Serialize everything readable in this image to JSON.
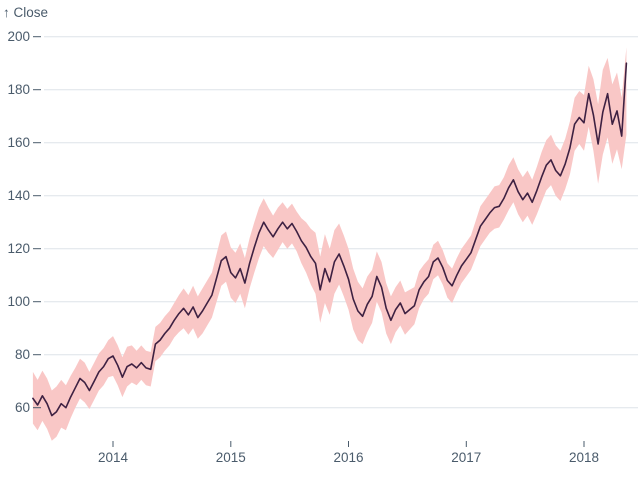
{
  "colors": {
    "band": "#f9c7c6",
    "line": "#3e2142",
    "grid": "#dee3e9",
    "axis_text": "#4a5b6b",
    "background": "#ffffff"
  },
  "chart_data": {
    "type": "line",
    "title": "↑ Close",
    "xlabel": "",
    "ylabel": "Close",
    "grid": true,
    "legend_position": "none",
    "x_ticks": [
      2014,
      2015,
      2016,
      2017,
      2018
    ],
    "y_ticks": [
      60,
      80,
      100,
      120,
      140,
      160,
      180,
      200
    ],
    "x_range": [
      2013.32,
      2018.37
    ],
    "y_range": [
      60,
      200
    ],
    "series_format": [
      "year_decimal",
      "close",
      "band_low",
      "band_high"
    ],
    "series": [
      {
        "name": "close",
        "style": "dark line"
      },
      {
        "name": "band",
        "style": "pink area between band_low and band_high"
      }
    ],
    "points": [
      [
        2013.32,
        63.5,
        54,
        73.5
      ],
      [
        2013.36,
        61,
        51.5,
        70.5
      ],
      [
        2013.4,
        64.5,
        55,
        74
      ],
      [
        2013.44,
        61.5,
        52,
        71
      ],
      [
        2013.48,
        57,
        47.5,
        66.5
      ],
      [
        2013.52,
        58.5,
        49,
        68
      ],
      [
        2013.56,
        61.5,
        52.5,
        70.5
      ],
      [
        2013.6,
        60,
        51.5,
        68.5
      ],
      [
        2013.64,
        64,
        56,
        72
      ],
      [
        2013.68,
        67.5,
        60,
        75
      ],
      [
        2013.72,
        71,
        63.5,
        78.5
      ],
      [
        2013.76,
        69.5,
        62,
        77
      ],
      [
        2013.8,
        66.5,
        59.5,
        73.5
      ],
      [
        2013.84,
        70,
        63,
        77
      ],
      [
        2013.88,
        73.5,
        66.5,
        80.5
      ],
      [
        2013.92,
        75.5,
        68.5,
        82.5
      ],
      [
        2013.96,
        78.5,
        71.5,
        85.5
      ],
      [
        2014.0,
        79.5,
        72,
        87
      ],
      [
        2014.04,
        76,
        68.5,
        83.5
      ],
      [
        2014.08,
        71.5,
        64,
        79
      ],
      [
        2014.12,
        75.5,
        68,
        83
      ],
      [
        2014.16,
        76.5,
        69.5,
        83.5
      ],
      [
        2014.2,
        75,
        68.5,
        81.5
      ],
      [
        2014.24,
        77,
        70.5,
        83.5
      ],
      [
        2014.28,
        75,
        68.5,
        81.5
      ],
      [
        2014.32,
        74.5,
        68,
        81
      ],
      [
        2014.36,
        84,
        77.5,
        90.5
      ],
      [
        2014.4,
        85.5,
        79,
        92
      ],
      [
        2014.44,
        88,
        81.5,
        94.5
      ],
      [
        2014.48,
        90,
        83.5,
        96.5
      ],
      [
        2014.52,
        93,
        86.5,
        99.5
      ],
      [
        2014.56,
        95.5,
        88.5,
        102.5
      ],
      [
        2014.6,
        97.5,
        90,
        105
      ],
      [
        2014.64,
        95,
        87.5,
        102.5
      ],
      [
        2014.68,
        98,
        90,
        106
      ],
      [
        2014.72,
        94,
        86,
        102
      ],
      [
        2014.76,
        96.5,
        88,
        105
      ],
      [
        2014.8,
        99.5,
        91,
        108
      ],
      [
        2014.84,
        102.5,
        94,
        111
      ],
      [
        2014.88,
        109,
        100,
        118
      ],
      [
        2014.92,
        115.5,
        106,
        125
      ],
      [
        2014.96,
        117,
        107.5,
        126.5
      ],
      [
        2015.0,
        111,
        101.5,
        120.5
      ],
      [
        2015.04,
        109,
        99.5,
        118.5
      ],
      [
        2015.08,
        112.5,
        103,
        122
      ],
      [
        2015.12,
        107,
        97.5,
        116.5
      ],
      [
        2015.16,
        114.5,
        105,
        124
      ],
      [
        2015.2,
        120.5,
        111,
        130
      ],
      [
        2015.24,
        126,
        116.5,
        135.5
      ],
      [
        2015.28,
        130,
        121,
        139
      ],
      [
        2015.32,
        127,
        118.5,
        135.5
      ],
      [
        2015.36,
        124.5,
        116.5,
        132.5
      ],
      [
        2015.4,
        127.5,
        119.5,
        135.5
      ],
      [
        2015.44,
        130,
        122.5,
        137.5
      ],
      [
        2015.48,
        127.5,
        120,
        135
      ],
      [
        2015.52,
        129.5,
        122,
        137
      ],
      [
        2015.56,
        126.5,
        119,
        134
      ],
      [
        2015.6,
        123,
        114.5,
        131.5
      ],
      [
        2015.64,
        120.5,
        111,
        130
      ],
      [
        2015.68,
        117,
        106.5,
        127.5
      ],
      [
        2015.72,
        114.5,
        103,
        126
      ],
      [
        2015.76,
        104.5,
        92,
        117
      ],
      [
        2015.8,
        112.5,
        99.5,
        125.5
      ],
      [
        2015.84,
        107.5,
        95,
        120
      ],
      [
        2015.88,
        115,
        103,
        127
      ],
      [
        2015.92,
        118,
        106.5,
        129.5
      ],
      [
        2015.96,
        113.5,
        102,
        125
      ],
      [
        2016.0,
        108.5,
        97,
        120
      ],
      [
        2016.04,
        101,
        89.5,
        112.5
      ],
      [
        2016.08,
        96.5,
        85.5,
        107.5
      ],
      [
        2016.12,
        94.5,
        84,
        105
      ],
      [
        2016.16,
        99,
        88.5,
        109.5
      ],
      [
        2016.2,
        102,
        92,
        112
      ],
      [
        2016.24,
        109.5,
        100,
        119
      ],
      [
        2016.28,
        105.5,
        96,
        115
      ],
      [
        2016.32,
        97.5,
        88,
        107
      ],
      [
        2016.36,
        93,
        84,
        102
      ],
      [
        2016.4,
        97,
        88.5,
        105.5
      ],
      [
        2016.44,
        99.5,
        91,
        108
      ],
      [
        2016.48,
        95.5,
        87.5,
        103.5
      ],
      [
        2016.52,
        97,
        89.5,
        104.5
      ],
      [
        2016.56,
        98.5,
        91.5,
        105.5
      ],
      [
        2016.6,
        104.5,
        97.5,
        111.5
      ],
      [
        2016.64,
        107.5,
        101,
        114
      ],
      [
        2016.68,
        109.5,
        103,
        116
      ],
      [
        2016.72,
        115,
        108.5,
        121.5
      ],
      [
        2016.76,
        116.5,
        110,
        123
      ],
      [
        2016.8,
        113,
        106.5,
        119.5
      ],
      [
        2016.84,
        108,
        101.5,
        114.5
      ],
      [
        2016.88,
        106,
        99.5,
        112.5
      ],
      [
        2016.92,
        110,
        103.5,
        116.5
      ],
      [
        2016.96,
        113.5,
        107,
        120
      ],
      [
        2017.0,
        116,
        109.5,
        122.5
      ],
      [
        2017.04,
        118.5,
        112,
        125
      ],
      [
        2017.08,
        123.5,
        116.5,
        130.5
      ],
      [
        2017.12,
        128.5,
        121,
        136
      ],
      [
        2017.16,
        131,
        123.5,
        138.5
      ],
      [
        2017.2,
        133.5,
        126,
        141
      ],
      [
        2017.24,
        135.5,
        127.5,
        143.5
      ],
      [
        2017.28,
        136,
        128,
        144
      ],
      [
        2017.32,
        139,
        131,
        147
      ],
      [
        2017.36,
        143,
        134.5,
        151.5
      ],
      [
        2017.4,
        146,
        137.5,
        154.5
      ],
      [
        2017.44,
        141.5,
        133,
        150
      ],
      [
        2017.48,
        138.5,
        130,
        147
      ],
      [
        2017.52,
        141,
        132.5,
        149.5
      ],
      [
        2017.56,
        137.5,
        129,
        146
      ],
      [
        2017.6,
        142,
        133,
        151
      ],
      [
        2017.64,
        147,
        137.5,
        156.5
      ],
      [
        2017.68,
        151.5,
        142,
        161
      ],
      [
        2017.72,
        153.5,
        144,
        163
      ],
      [
        2017.76,
        149.5,
        140,
        159
      ],
      [
        2017.8,
        147.5,
        138,
        157
      ],
      [
        2017.84,
        152,
        142.5,
        161.5
      ],
      [
        2017.88,
        158,
        148,
        168
      ],
      [
        2017.92,
        167,
        157,
        177
      ],
      [
        2017.96,
        169.5,
        159.5,
        179.5
      ],
      [
        2018.0,
        167.5,
        157,
        178
      ],
      [
        2018.04,
        178.5,
        166,
        189
      ],
      [
        2018.08,
        170.5,
        157,
        184
      ],
      [
        2018.12,
        159.5,
        144.5,
        174.5
      ],
      [
        2018.16,
        171.5,
        155.5,
        187.5
      ],
      [
        2018.2,
        178.5,
        162,
        192
      ],
      [
        2018.24,
        167,
        152,
        182
      ],
      [
        2018.28,
        172,
        157.5,
        186.5
      ],
      [
        2018.32,
        162.5,
        150,
        177
      ],
      [
        2018.36,
        190,
        163,
        196
      ]
    ]
  }
}
